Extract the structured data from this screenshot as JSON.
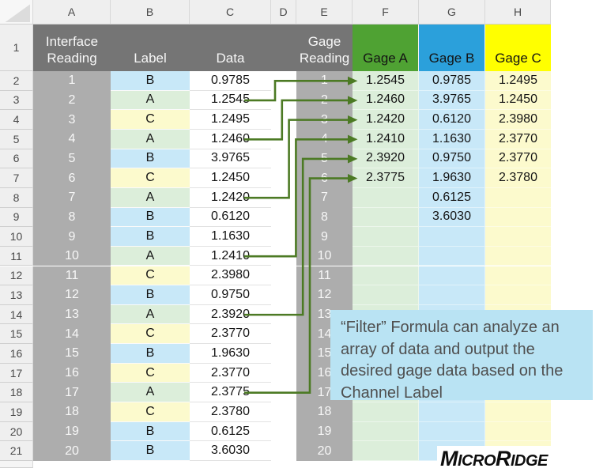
{
  "sheet": {
    "column_letters": [
      "A",
      "B",
      "C",
      "D",
      "E",
      "F",
      "G",
      "H"
    ],
    "row_numbers": [
      1,
      2,
      3,
      4,
      5,
      6,
      7,
      8,
      9,
      10,
      11,
      12,
      13,
      14,
      15,
      16,
      17,
      18,
      19,
      20,
      21
    ],
    "interface_table": {
      "header": {
        "col_a": "Interface Reading",
        "col_b": "Label",
        "col_c": "Data"
      },
      "rows": [
        {
          "reading": "1",
          "label": "B",
          "data": "0.9785"
        },
        {
          "reading": "2",
          "label": "A",
          "data": "1.2545"
        },
        {
          "reading": "3",
          "label": "C",
          "data": "1.2495"
        },
        {
          "reading": "4",
          "label": "A",
          "data": "1.2460"
        },
        {
          "reading": "5",
          "label": "B",
          "data": "3.9765"
        },
        {
          "reading": "6",
          "label": "C",
          "data": "1.2450"
        },
        {
          "reading": "7",
          "label": "A",
          "data": "1.2420"
        },
        {
          "reading": "8",
          "label": "B",
          "data": "0.6120"
        },
        {
          "reading": "9",
          "label": "B",
          "data": "1.1630"
        },
        {
          "reading": "10",
          "label": "A",
          "data": "1.2410"
        },
        {
          "reading": "11",
          "label": "C",
          "data": "2.3980"
        },
        {
          "reading": "12",
          "label": "B",
          "data": "0.9750"
        },
        {
          "reading": "13",
          "label": "A",
          "data": "2.3920"
        },
        {
          "reading": "14",
          "label": "C",
          "data": "2.3770"
        },
        {
          "reading": "15",
          "label": "B",
          "data": "1.9630"
        },
        {
          "reading": "16",
          "label": "C",
          "data": "2.3770"
        },
        {
          "reading": "17",
          "label": "A",
          "data": "2.3775"
        },
        {
          "reading": "18",
          "label": "C",
          "data": "2.3780"
        },
        {
          "reading": "19",
          "label": "B",
          "data": "0.6125"
        },
        {
          "reading": "20",
          "label": "B",
          "data": "3.6030"
        }
      ]
    },
    "gage_table": {
      "header": {
        "col_e": "Gage Reading",
        "col_f": "Gage A",
        "col_g": "Gage B",
        "col_h": "Gage C"
      },
      "readings": [
        "1",
        "2",
        "3",
        "4",
        "5",
        "6",
        "7",
        "8",
        "9",
        "10",
        "11",
        "12",
        "13",
        "14",
        "15",
        "16",
        "17",
        "18",
        "19",
        "20"
      ],
      "gage_a": [
        "1.2545",
        "1.2460",
        "1.2420",
        "1.2410",
        "2.3920",
        "2.3775"
      ],
      "gage_b": [
        "0.9785",
        "3.9765",
        "0.6120",
        "1.1630",
        "0.9750",
        "1.9630",
        "0.6125",
        "3.6030"
      ],
      "gage_c": [
        "1.2495",
        "1.2450",
        "2.3980",
        "2.3770",
        "2.3770",
        "2.3780"
      ]
    },
    "arrows": [
      {
        "interface_reading": 2,
        "gage_reading": 1
      },
      {
        "interface_reading": 4,
        "gage_reading": 2
      },
      {
        "interface_reading": 7,
        "gage_reading": 3
      },
      {
        "interface_reading": 10,
        "gage_reading": 4
      },
      {
        "interface_reading": 13,
        "gage_reading": 5
      },
      {
        "interface_reading": 17,
        "gage_reading": 6
      }
    ],
    "colors": {
      "header_dark": "#757575",
      "reading_gray": "#ADADAD",
      "gage_a_header": "#4FA233",
      "gage_b_header": "#2BA0DB",
      "gage_c_header": "#FFFF00",
      "label_a_fill": "#DCEEDA",
      "label_b_fill": "#C8E8F8",
      "label_c_fill": "#FCFACD",
      "arrow_green": "#4C7A24",
      "callout_blue": "#B9E3F3"
    }
  },
  "callout": {
    "text": "“Filter” Formula can analyze an array of data and output the desired gage data based on the Channel Label"
  },
  "logo": {
    "text": "MicroRidge",
    "part1_big": "M",
    "part1_small": "ICRO",
    "part2_big": "R",
    "part2_small": "IDGE"
  }
}
